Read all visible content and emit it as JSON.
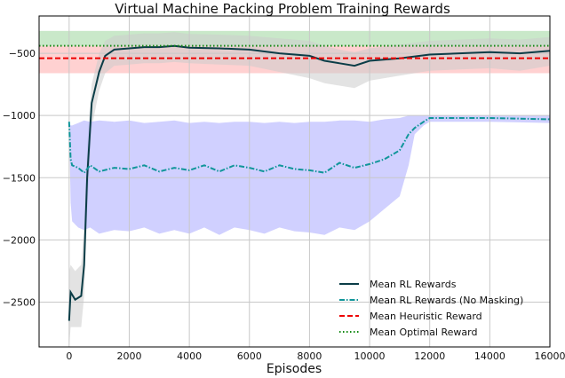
{
  "chart_data": {
    "type": "line",
    "title": "Virtual Machine Packing Problem Training Rewards",
    "xlabel": "Episodes",
    "ylabel": "",
    "xlim": [
      -1000,
      16000
    ],
    "ylim": [
      -2860,
      -200
    ],
    "grid": true,
    "legend_position": "lower right",
    "x_ticks": [
      0,
      2000,
      4000,
      6000,
      8000,
      10000,
      12000,
      14000,
      16000
    ],
    "x_tick_labels": [
      "0",
      "2000",
      "4000",
      "6000",
      "8000",
      "10000",
      "12000",
      "14000",
      "16000"
    ],
    "y_ticks": [
      -500,
      -1000,
      -1500,
      -2000,
      -2500
    ],
    "y_tick_labels": [
      "−500",
      "−1000",
      "−1500",
      "−2000",
      "−2500"
    ],
    "series": [
      {
        "name": "Mean RL Rewards",
        "style": "solid",
        "color": "#0b3d47",
        "band_color": "#cccccc",
        "x": [
          0,
          50,
          200,
          400,
          500,
          600,
          750,
          1000,
          1200,
          1500,
          2000,
          2500,
          3000,
          3500,
          4000,
          5000,
          6000,
          7000,
          8000,
          8500,
          9000,
          9500,
          10000,
          11000,
          12000,
          13000,
          14000,
          15000,
          16000
        ],
        "values": [
          -2650,
          -2420,
          -2480,
          -2450,
          -2200,
          -1500,
          -900,
          -650,
          -520,
          -470,
          -460,
          -450,
          -450,
          -440,
          -455,
          -460,
          -470,
          -500,
          -520,
          -560,
          -580,
          -600,
          -560,
          -540,
          -510,
          -500,
          -490,
          -500,
          -480
        ],
        "band_upper": [
          -2250,
          -2200,
          -2250,
          -2200,
          -1900,
          -1250,
          -750,
          -500,
          -400,
          -360,
          -350,
          -340,
          -340,
          -330,
          -345,
          -350,
          -360,
          -380,
          -400,
          -440,
          -470,
          -490,
          -460,
          -430,
          -400,
          -390,
          -380,
          -390,
          -370
        ],
        "band_lower": [
          -2860,
          -2700,
          -2700,
          -2700,
          -2450,
          -1800,
          -1100,
          -800,
          -660,
          -600,
          -590,
          -580,
          -580,
          -570,
          -580,
          -590,
          -600,
          -650,
          -700,
          -740,
          -760,
          -780,
          -720,
          -680,
          -640,
          -630,
          -620,
          -640,
          -600
        ]
      },
      {
        "name": "Mean RL Rewards (No Masking)",
        "style": "dashdot",
        "color": "#11969a",
        "band_color": "#aaaaff",
        "x": [
          0,
          50,
          100,
          300,
          500,
          700,
          1000,
          1500,
          2000,
          2500,
          3000,
          3500,
          4000,
          4500,
          5000,
          5500,
          6000,
          6500,
          7000,
          7500,
          8000,
          8500,
          9000,
          9500,
          10000,
          10500,
          11000,
          11300,
          11500,
          11800,
          12000,
          13000,
          14000,
          15000,
          16000
        ],
        "values": [
          -1050,
          -1350,
          -1400,
          -1420,
          -1460,
          -1400,
          -1450,
          -1420,
          -1430,
          -1400,
          -1450,
          -1420,
          -1440,
          -1400,
          -1450,
          -1400,
          -1420,
          -1450,
          -1400,
          -1430,
          -1440,
          -1460,
          -1380,
          -1420,
          -1390,
          -1350,
          -1280,
          -1150,
          -1100,
          -1050,
          -1020,
          -1020,
          -1020,
          -1025,
          -1030
        ],
        "band_upper": [
          -1050,
          -1080,
          -1080,
          -1060,
          -1040,
          -1050,
          -1040,
          -1050,
          -1040,
          -1060,
          -1050,
          -1040,
          -1060,
          -1050,
          -1060,
          -1050,
          -1050,
          -1060,
          -1050,
          -1060,
          -1050,
          -1050,
          -1040,
          -1040,
          -1050,
          -1030,
          -1020,
          -1000,
          -1000,
          -1000,
          -1000,
          -1000,
          -1000,
          -1000,
          -1000
        ],
        "band_lower": [
          -1050,
          -1700,
          -1850,
          -1900,
          -1920,
          -1900,
          -1950,
          -1920,
          -1930,
          -1900,
          -1950,
          -1920,
          -1950,
          -1900,
          -1960,
          -1900,
          -1920,
          -1950,
          -1900,
          -1930,
          -1940,
          -1960,
          -1900,
          -1920,
          -1850,
          -1750,
          -1650,
          -1400,
          -1150,
          -1080,
          -1050,
          -1050,
          -1050,
          -1055,
          -1060
        ]
      },
      {
        "name": "Mean Heuristic Reward",
        "style": "dashed",
        "color": "#ee0000",
        "band_color": "#ff9999",
        "value": -540,
        "band_upper": -440,
        "band_lower": -660
      },
      {
        "name": "Mean Optimal Reward",
        "style": "dotted",
        "color": "#118811",
        "band_color": "#88cc88",
        "value": -440,
        "band_upper": -320,
        "band_lower": -440
      }
    ]
  }
}
